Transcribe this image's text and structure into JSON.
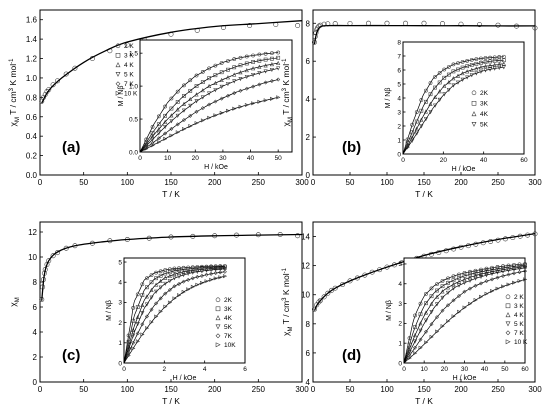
{
  "chart_data": [
    {
      "type": "scatter",
      "panel_label": "(a)",
      "xlabel": "T / K",
      "ylabel": "χM T / cm³ K mol⁻¹",
      "ylabel_parts": [
        "χ",
        "M",
        " T / cm",
        "3",
        " K mol",
        "-1"
      ],
      "xlim": [
        0,
        300
      ],
      "ylim": [
        0.0,
        1.7
      ],
      "xticks": [
        "0",
        "50",
        "100",
        "150",
        "200",
        "250",
        "300"
      ],
      "yticks": [
        "0.0",
        "0.2",
        "0.4",
        "0.6",
        "0.8",
        "1.0",
        "1.2",
        "1.4",
        "1.6"
      ],
      "fit": {
        "x": [
          2,
          10,
          25,
          50,
          75,
          100,
          150,
          200,
          250,
          300
        ],
        "y": [
          0.74,
          0.87,
          1.0,
          1.16,
          1.28,
          1.37,
          1.47,
          1.53,
          1.56,
          1.59
        ]
      },
      "series": [
        {
          "x": [
            2,
            4,
            6,
            8,
            10,
            15,
            20,
            30,
            40,
            60,
            80,
            100,
            120,
            150,
            180,
            210,
            240,
            270,
            295
          ],
          "y": [
            0.76,
            0.8,
            0.83,
            0.86,
            0.88,
            0.93,
            0.97,
            1.04,
            1.1,
            1.2,
            1.28,
            1.34,
            1.39,
            1.45,
            1.49,
            1.52,
            1.54,
            1.55,
            1.54
          ]
        }
      ],
      "inset": {
        "xlabel": "H / kOe",
        "ylabel": "M / Nβ",
        "xlim": [
          0,
          55
        ],
        "ylim": [
          0.0,
          1.7
        ],
        "xticks": [
          "0",
          "10",
          "20",
          "30",
          "40",
          "50"
        ],
        "yticks": [
          "0.0",
          "0.5",
          "1.0",
          "1.5"
        ],
        "legend": [
          "2 K",
          "3 K",
          "4 K",
          "5 K",
          "7 K",
          "10 K"
        ],
        "x": [
          0,
          5,
          10,
          15,
          20,
          25,
          30,
          35,
          40,
          45,
          50
        ],
        "series": [
          {
            "name": "2 K",
            "values": [
              0,
              0.42,
              0.75,
              0.98,
              1.15,
              1.27,
              1.36,
              1.42,
              1.46,
              1.49,
              1.51
            ]
          },
          {
            "name": "3 K",
            "values": [
              0,
              0.32,
              0.6,
              0.82,
              0.99,
              1.12,
              1.22,
              1.3,
              1.36,
              1.4,
              1.43
            ]
          },
          {
            "name": "4 K",
            "values": [
              0,
              0.26,
              0.5,
              0.7,
              0.86,
              1.0,
              1.1,
              1.19,
              1.26,
              1.31,
              1.35
            ]
          },
          {
            "name": "5 K",
            "values": [
              0,
              0.21,
              0.42,
              0.6,
              0.76,
              0.89,
              1.0,
              1.09,
              1.16,
              1.22,
              1.27
            ]
          },
          {
            "name": "7 K",
            "values": [
              0,
              0.15,
              0.31,
              0.46,
              0.6,
              0.72,
              0.82,
              0.91,
              0.98,
              1.05,
              1.1
            ]
          },
          {
            "name": "10 K",
            "values": [
              0,
              0.11,
              0.22,
              0.33,
              0.43,
              0.52,
              0.6,
              0.67,
              0.73,
              0.78,
              0.83
            ]
          }
        ]
      }
    },
    {
      "type": "scatter",
      "panel_label": "(b)",
      "xlabel": "T / K",
      "ylabel": "χM T / cm³ K mol⁻¹",
      "ylabel_parts": [
        "χ",
        "M",
        " T / cm",
        "3",
        " K mol",
        "-1"
      ],
      "xlim": [
        0,
        300
      ],
      "ylim": [
        0,
        8.7
      ],
      "xticks": [
        "0",
        "50",
        "100",
        "150",
        "200",
        "250",
        "300"
      ],
      "yticks": [
        "0",
        "2",
        "4",
        "6",
        "8"
      ],
      "fit": {
        "x": [
          2,
          4,
          6,
          8,
          12,
          20,
          50,
          100,
          150,
          200,
          250,
          300
        ],
        "y": [
          6.9,
          7.35,
          7.6,
          7.75,
          7.85,
          7.88,
          7.88,
          7.88,
          7.87,
          7.87,
          7.86,
          7.86
        ]
      },
      "series": [
        {
          "x": [
            2,
            3,
            4,
            5,
            6,
            8,
            10,
            15,
            20,
            30,
            50,
            75,
            100,
            125,
            150,
            175,
            200,
            225,
            250,
            275,
            300
          ],
          "y": [
            7.0,
            7.3,
            7.5,
            7.65,
            7.75,
            7.85,
            7.9,
            7.95,
            7.97,
            7.98,
            7.99,
            8.0,
            8.0,
            8.0,
            8.0,
            7.98,
            7.95,
            7.93,
            7.9,
            7.85,
            7.75
          ]
        }
      ],
      "inset": {
        "xlabel": "H / kOe",
        "ylabel": "M / Nβ",
        "xlim": [
          0,
          60
        ],
        "ylim": [
          0,
          8
        ],
        "xticks": [
          "0",
          "20",
          "40",
          "60"
        ],
        "yticks": [
          "0",
          "1",
          "2",
          "3",
          "4",
          "5",
          "6",
          "7",
          "8"
        ],
        "legend": [
          "2K",
          "3K",
          "4K",
          "5K"
        ],
        "x": [
          0,
          5,
          10,
          15,
          20,
          25,
          30,
          35,
          40,
          45,
          50
        ],
        "series": [
          {
            "name": "2K",
            "values": [
              0,
              2.3,
              4.2,
              5.4,
              6.0,
              6.4,
              6.6,
              6.75,
              6.85,
              6.9,
              6.95
            ]
          },
          {
            "name": "3K",
            "values": [
              0,
              1.7,
              3.4,
              4.6,
              5.4,
              5.9,
              6.2,
              6.4,
              6.55,
              6.65,
              6.7
            ]
          },
          {
            "name": "4K",
            "values": [
              0,
              1.3,
              2.7,
              3.9,
              4.8,
              5.4,
              5.8,
              6.05,
              6.25,
              6.35,
              6.45
            ]
          },
          {
            "name": "5K",
            "values": [
              0,
              1.05,
              2.2,
              3.3,
              4.2,
              4.9,
              5.35,
              5.7,
              5.95,
              6.1,
              6.2
            ]
          }
        ]
      }
    },
    {
      "type": "scatter",
      "panel_label": "(c)",
      "xlabel": "T / K",
      "ylabel": "χM",
      "ylabel_parts": [
        "χ",
        "M",
        "",
        "",
        "",
        ""
      ],
      "xlim": [
        0,
        300
      ],
      "ylim": [
        0,
        12.8
      ],
      "xticks": [
        "0",
        "50",
        "100",
        "150",
        "200",
        "250",
        "300"
      ],
      "yticks": [
        "0",
        "2",
        "4",
        "6",
        "8",
        "10",
        "12"
      ],
      "fit": {
        "x": [
          2,
          5,
          10,
          20,
          40,
          70,
          100,
          150,
          200,
          250,
          300
        ],
        "y": [
          6.5,
          8.6,
          9.7,
          10.4,
          10.9,
          11.2,
          11.4,
          11.6,
          11.7,
          11.75,
          11.8
        ]
      },
      "series": [
        {
          "x": [
            2,
            3,
            4,
            5,
            6,
            8,
            10,
            15,
            20,
            30,
            40,
            60,
            80,
            100,
            125,
            150,
            175,
            200,
            225,
            250,
            275,
            295
          ],
          "y": [
            6.6,
            7.6,
            8.2,
            8.7,
            9.0,
            9.4,
            9.7,
            10.1,
            10.35,
            10.7,
            10.9,
            11.1,
            11.3,
            11.4,
            11.5,
            11.6,
            11.65,
            11.7,
            11.75,
            11.78,
            11.8,
            11.7
          ]
        }
      ],
      "inset": {
        "xlabel": "H / kOe",
        "ylabel": "M / Nβ",
        "xlim": [
          0,
          6
        ],
        "ylim": [
          0,
          5.2
        ],
        "xticks": [
          "0",
          "2",
          "4",
          "6"
        ],
        "yticks": [
          "0",
          "1",
          "2",
          "3",
          "4",
          "5"
        ],
        "legend": [
          "2K",
          "3K",
          "4K",
          "5K",
          "7K",
          "10K"
        ],
        "x": [
          0,
          0.5,
          1,
          1.5,
          2,
          2.5,
          3,
          3.5,
          4,
          4.5,
          5
        ],
        "series": [
          {
            "name": "2K",
            "values": [
              0,
              3.0,
              4.1,
              4.45,
              4.6,
              4.68,
              4.72,
              4.75,
              4.77,
              4.79,
              4.8
            ]
          },
          {
            "name": "3K",
            "values": [
              0,
              2.3,
              3.6,
              4.15,
              4.42,
              4.56,
              4.64,
              4.69,
              4.72,
              4.75,
              4.77
            ]
          },
          {
            "name": "4K",
            "values": [
              0,
              1.8,
              3.1,
              3.8,
              4.2,
              4.4,
              4.52,
              4.6,
              4.65,
              4.69,
              4.72
            ]
          },
          {
            "name": "5K",
            "values": [
              0,
              1.5,
              2.7,
              3.45,
              3.9,
              4.2,
              4.38,
              4.5,
              4.57,
              4.63,
              4.67
            ]
          },
          {
            "name": "7K",
            "values": [
              0,
              1.1,
              2.1,
              2.85,
              3.4,
              3.8,
              4.05,
              4.23,
              4.35,
              4.45,
              4.52
            ]
          },
          {
            "name": "10K",
            "values": [
              0,
              0.8,
              1.55,
              2.2,
              2.75,
              3.2,
              3.55,
              3.82,
              4.02,
              4.18,
              4.3
            ]
          }
        ]
      }
    },
    {
      "type": "scatter",
      "panel_label": "(d)",
      "xlabel": "T / K",
      "ylabel": "χM T / cm³ K mol⁻¹",
      "ylabel_parts": [
        "χ",
        "M",
        " T / cm",
        "3",
        " K mol",
        "-1"
      ],
      "xlim": [
        0,
        300
      ],
      "ylim": [
        4,
        15
      ],
      "xticks": [
        "0",
        "50",
        "100",
        "150",
        "200",
        "250",
        "300"
      ],
      "yticks": [
        "4",
        "6",
        "8",
        "10",
        "12",
        "14"
      ],
      "fit": {
        "x": [
          2,
          5,
          10,
          20,
          30,
          50,
          75,
          100,
          150,
          200,
          250,
          300
        ],
        "y": [
          8.9,
          9.25,
          9.6,
          10.1,
          10.45,
          10.95,
          11.45,
          11.9,
          12.7,
          13.3,
          13.8,
          14.2
        ]
      },
      "series": [
        {
          "x": [
            2,
            5,
            8,
            10,
            15,
            20,
            25,
            30,
            40,
            50,
            60,
            70,
            80,
            90,
            100,
            110,
            120,
            130,
            140,
            150,
            160,
            170,
            180,
            190,
            200,
            210,
            220,
            230,
            240,
            250,
            260,
            270,
            280,
            290,
            300
          ],
          "y": [
            9.0,
            9.3,
            9.5,
            9.6,
            9.85,
            10.1,
            10.3,
            10.45,
            10.7,
            10.95,
            11.15,
            11.35,
            11.55,
            11.72,
            11.9,
            12.05,
            12.2,
            12.35,
            12.5,
            12.65,
            12.78,
            12.9,
            13.02,
            13.14,
            13.26,
            13.37,
            13.47,
            13.57,
            13.66,
            13.75,
            13.84,
            13.93,
            14.02,
            14.1,
            14.18
          ]
        }
      ],
      "inset": {
        "xlabel": "H / kOe",
        "ylabel": "M / Nβ",
        "xlim": [
          0,
          60
        ],
        "ylim": [
          0,
          5.3
        ],
        "xticks": [
          "0",
          "10",
          "20",
          "30",
          "40",
          "50",
          "60"
        ],
        "yticks": [
          "0",
          "1",
          "2",
          "3",
          "4",
          "5"
        ],
        "legend": [
          "2 K",
          "3 K",
          "4 K",
          "5 K",
          "7 K",
          "10 K"
        ],
        "x": [
          0,
          5,
          10,
          15,
          20,
          25,
          30,
          35,
          40,
          45,
          50,
          55,
          60
        ],
        "series": [
          {
            "name": "2 K",
            "values": [
              0,
              2.3,
              3.4,
              3.9,
              4.2,
              4.4,
              4.55,
              4.65,
              4.75,
              4.83,
              4.9,
              4.96,
              5.0
            ]
          },
          {
            "name": "3 K",
            "values": [
              0,
              1.7,
              2.9,
              3.55,
              3.95,
              4.2,
              4.4,
              4.53,
              4.64,
              4.73,
              4.81,
              4.88,
              4.93
            ]
          },
          {
            "name": "4 K",
            "values": [
              0,
              1.3,
              2.4,
              3.2,
              3.7,
              4.0,
              4.22,
              4.4,
              4.53,
              4.64,
              4.73,
              4.8,
              4.87
            ]
          },
          {
            "name": "5 K",
            "values": [
              0,
              1.0,
              2.0,
              2.8,
              3.4,
              3.8,
              4.05,
              4.25,
              4.41,
              4.54,
              4.64,
              4.73,
              4.8
            ]
          },
          {
            "name": "7 K",
            "values": [
              0,
              0.7,
              1.45,
              2.15,
              2.75,
              3.2,
              3.6,
              3.88,
              4.1,
              4.27,
              4.42,
              4.54,
              4.64
            ]
          },
          {
            "name": "10 K",
            "values": [
              0,
              0.45,
              0.95,
              1.45,
              1.95,
              2.4,
              2.8,
              3.15,
              3.45,
              3.7,
              3.9,
              4.07,
              4.22
            ]
          }
        ]
      }
    }
  ]
}
